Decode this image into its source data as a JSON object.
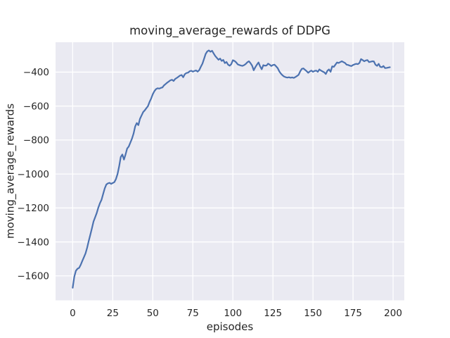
{
  "chart_data": {
    "type": "line",
    "title": "moving_average_rewards of DDPG",
    "xlabel": "episodes",
    "ylabel": "moving_average_rewards",
    "xlim": [
      -10.7,
      207.0
    ],
    "ylim": [
      -1744,
      -224
    ],
    "xticks": [
      0,
      25,
      50,
      75,
      100,
      125,
      150,
      175,
      200
    ],
    "xtick_labels": [
      "0",
      "25",
      "50",
      "75",
      "100",
      "125",
      "150",
      "175",
      "200"
    ],
    "yticks": [
      -400,
      -600,
      -800,
      -1000,
      -1200,
      -1400,
      -1600
    ],
    "ytick_labels": [
      "−400",
      "−600",
      "−800",
      "−1000",
      "−1200",
      "−1400",
      "−1600"
    ],
    "grid": true,
    "legend": false,
    "style": {
      "figure_bg": "#ffffff",
      "plot_bg": "#eaeaf2",
      "grid_color": "#ffffff",
      "line_color": "#4c72b0",
      "text_color": "#262626",
      "line_width": 2.2
    },
    "series": [
      {
        "name": "moving_average_rewards",
        "x_range": {
          "start": 0,
          "end": 198,
          "step": 1
        },
        "y": [
          -1670,
          -1605,
          -1570,
          -1558,
          -1553,
          -1535,
          -1512,
          -1490,
          -1468,
          -1435,
          -1395,
          -1358,
          -1320,
          -1280,
          -1255,
          -1230,
          -1198,
          -1172,
          -1152,
          -1118,
          -1085,
          -1062,
          -1055,
          -1052,
          -1058,
          -1053,
          -1048,
          -1030,
          -1000,
          -955,
          -900,
          -885,
          -915,
          -885,
          -850,
          -838,
          -815,
          -792,
          -762,
          -720,
          -700,
          -712,
          -675,
          -655,
          -635,
          -625,
          -612,
          -600,
          -575,
          -555,
          -530,
          -512,
          -500,
          -495,
          -497,
          -493,
          -490,
          -478,
          -470,
          -462,
          -455,
          -448,
          -445,
          -452,
          -440,
          -434,
          -427,
          -420,
          -417,
          -430,
          -412,
          -405,
          -403,
          -395,
          -392,
          -397,
          -393,
          -390,
          -397,
          -388,
          -368,
          -350,
          -322,
          -293,
          -278,
          -272,
          -280,
          -274,
          -290,
          -305,
          -316,
          -327,
          -320,
          -334,
          -328,
          -347,
          -340,
          -356,
          -362,
          -353,
          -330,
          -334,
          -342,
          -354,
          -358,
          -361,
          -363,
          -359,
          -352,
          -342,
          -336,
          -347,
          -362,
          -389,
          -371,
          -356,
          -343,
          -366,
          -383,
          -359,
          -362,
          -361,
          -350,
          -356,
          -364,
          -358,
          -356,
          -366,
          -377,
          -396,
          -409,
          -419,
          -426,
          -430,
          -432,
          -430,
          -433,
          -431,
          -434,
          -429,
          -423,
          -416,
          -396,
          -381,
          -378,
          -386,
          -394,
          -404,
          -396,
          -391,
          -398,
          -393,
          -391,
          -398,
          -384,
          -391,
          -396,
          -401,
          -411,
          -392,
          -384,
          -398,
          -366,
          -369,
          -356,
          -343,
          -346,
          -341,
          -336,
          -341,
          -346,
          -356,
          -358,
          -362,
          -364,
          -358,
          -354,
          -351,
          -353,
          -346,
          -323,
          -329,
          -336,
          -331,
          -329,
          -341,
          -339,
          -336,
          -337,
          -356,
          -363,
          -351,
          -369,
          -371,
          -364,
          -376,
          -375,
          -373,
          -371
        ]
      }
    ]
  }
}
